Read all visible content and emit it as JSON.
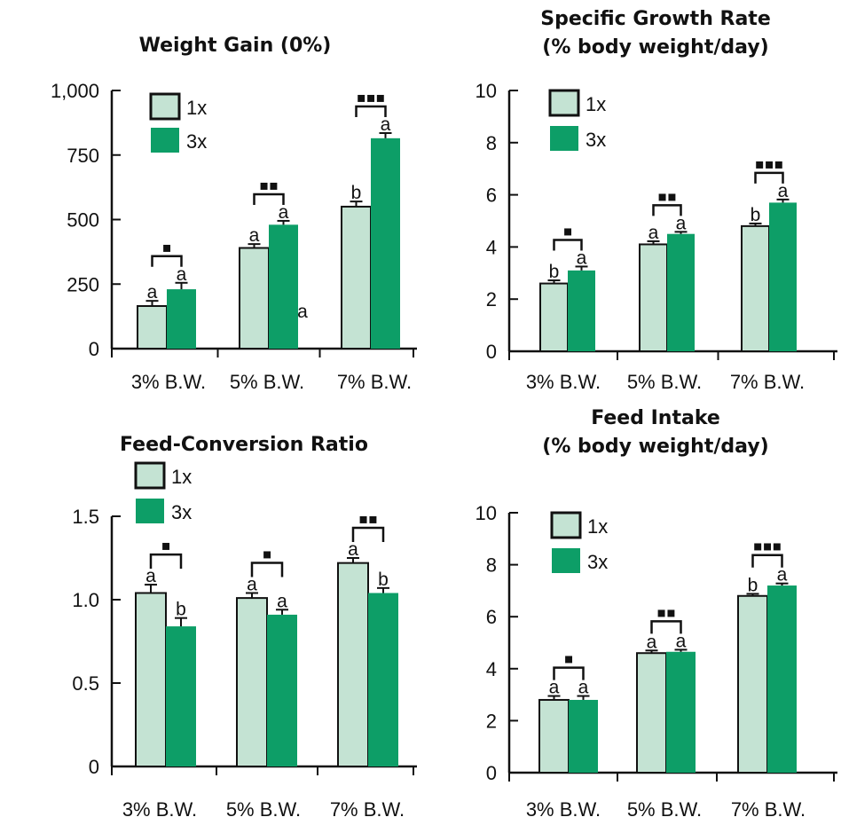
{
  "colors": {
    "1x": "#c4e3d3",
    "3x": "#0d9e67",
    "ink": "#111111"
  },
  "chart_data": [
    {
      "type": "bar",
      "title": "Weight Gain (0%)",
      "title_lines": [
        "Weight Gain (0%)"
      ],
      "categories": [
        "3% B.W.",
        "5% B.W.",
        "7% B.W."
      ],
      "ylim": [
        0,
        1000
      ],
      "yticks": [
        0,
        250,
        500,
        750,
        1000
      ],
      "ytick_labels": [
        "0",
        "250",
        "500",
        "750",
        "1,000"
      ],
      "legend": [
        "1x",
        "3x"
      ],
      "series": [
        {
          "name": "1x",
          "values": [
            165,
            390,
            550
          ],
          "errors": [
            20,
            15,
            20
          ],
          "letters": [
            "a",
            "a",
            "b"
          ]
        },
        {
          "name": "3x",
          "values": [
            230,
            480,
            815
          ],
          "errors": [
            25,
            15,
            20
          ],
          "letters": [
            "a",
            "a",
            "a"
          ]
        }
      ],
      "significance": [
        "▪",
        "▪▪",
        "▪▪▪"
      ],
      "extra_labels": [
        "a"
      ]
    },
    {
      "type": "bar",
      "title": "Specific Growth Rate (% body weight/day)",
      "title_lines": [
        "Specific Growth Rate",
        "(% body weight/day)"
      ],
      "categories": [
        "3% B.W.",
        "5% B.W.",
        "7% B.W."
      ],
      "ylim": [
        0,
        10
      ],
      "yticks": [
        0,
        2,
        4,
        6,
        8,
        10
      ],
      "ytick_labels": [
        "0",
        "2",
        "4",
        "6",
        "8",
        "10"
      ],
      "legend": [
        "1x",
        "3x"
      ],
      "series": [
        {
          "name": "1x",
          "values": [
            2.6,
            4.1,
            4.8
          ],
          "errors": [
            0.12,
            0.12,
            0.1
          ],
          "letters": [
            "b",
            "a",
            "b"
          ]
        },
        {
          "name": "3x",
          "values": [
            3.1,
            4.5,
            5.7
          ],
          "errors": [
            0.15,
            0.08,
            0.12
          ],
          "letters": [
            "a",
            "a",
            "a"
          ]
        }
      ],
      "significance": [
        "▪",
        "▪▪",
        "▪▪▪"
      ]
    },
    {
      "type": "bar",
      "title": "Feed-Conversion Ratio",
      "title_lines": [
        "Feed-Conversion Ratio"
      ],
      "categories": [
        "3% B.W.",
        "5% B.W.",
        "7% B.W."
      ],
      "ylim": [
        0,
        1.5
      ],
      "yticks": [
        0,
        0.5,
        1.0,
        1.5
      ],
      "ytick_labels": [
        "0",
        "0.5",
        "1.0",
        "1.5"
      ],
      "legend": [
        "1x",
        "3x"
      ],
      "series": [
        {
          "name": "1x",
          "values": [
            1.04,
            1.01,
            1.22
          ],
          "errors": [
            0.05,
            0.03,
            0.03
          ],
          "letters": [
            "a",
            "a",
            "a"
          ]
        },
        {
          "name": "3x",
          "values": [
            0.84,
            0.91,
            1.04
          ],
          "errors": [
            0.05,
            0.03,
            0.03
          ],
          "letters": [
            "b",
            "a",
            "b"
          ]
        }
      ],
      "significance": [
        "▪",
        "▪",
        "▪▪"
      ]
    },
    {
      "type": "bar",
      "title": "Feed Intake (% body weight/day)",
      "title_lines": [
        "Feed Intake",
        "(% body weight/day)"
      ],
      "categories": [
        "3% B.W.",
        "5% B.W.",
        "7% B.W."
      ],
      "ylim": [
        0,
        10
      ],
      "yticks": [
        0,
        2,
        4,
        6,
        8,
        10
      ],
      "ytick_labels": [
        "0",
        "2",
        "4",
        "6",
        "8",
        "10"
      ],
      "legend": [
        "1x",
        "3x"
      ],
      "series": [
        {
          "name": "1x",
          "values": [
            2.8,
            4.6,
            6.8
          ],
          "errors": [
            0.15,
            0.1,
            0.08
          ],
          "letters": [
            "a",
            "a",
            "b"
          ]
        },
        {
          "name": "3x",
          "values": [
            2.8,
            4.65,
            7.2
          ],
          "errors": [
            0.15,
            0.08,
            0.08
          ],
          "letters": [
            "a",
            "a",
            "a"
          ]
        }
      ],
      "significance": [
        "▪",
        "▪▪",
        "▪▪▪"
      ]
    }
  ]
}
